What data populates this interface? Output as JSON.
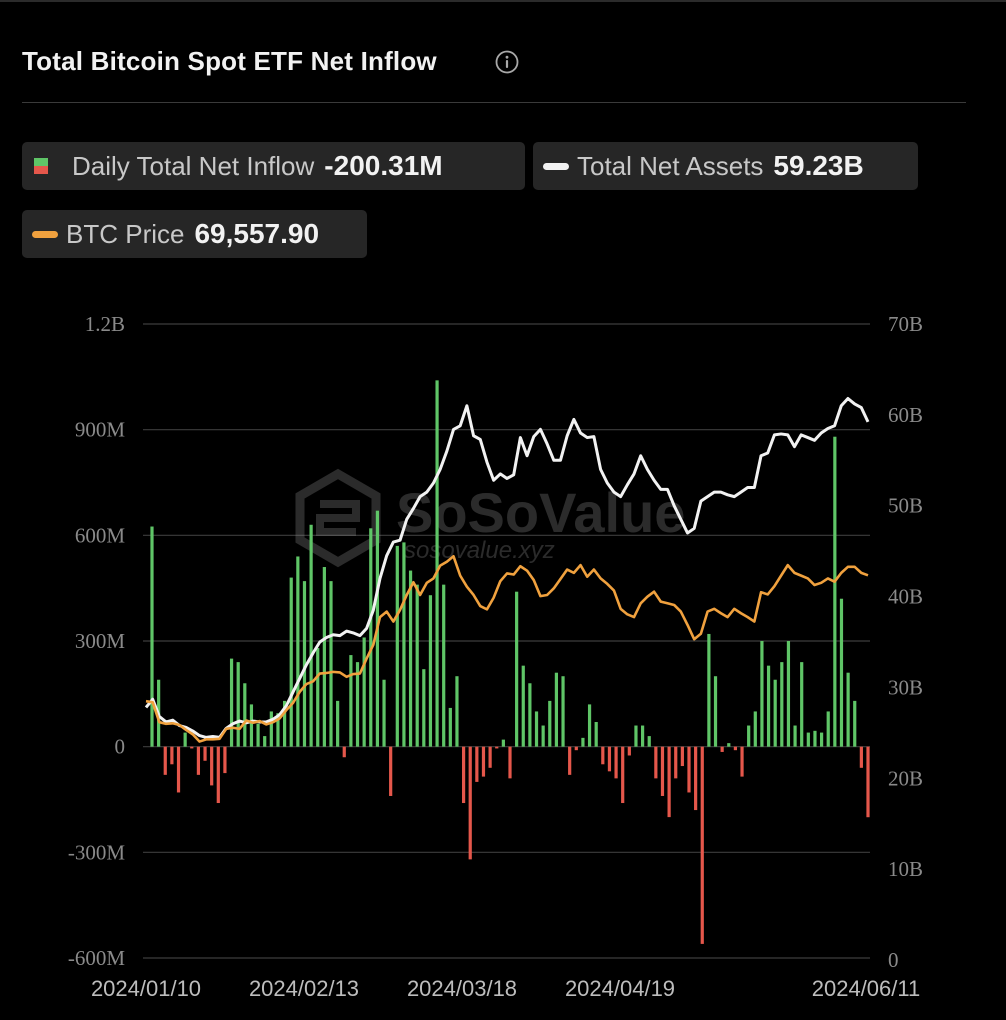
{
  "header": {
    "title": "Total Bitcoin Spot ETF Net Inflow",
    "info_icon": "info-icon"
  },
  "legend": [
    {
      "label": "Daily Total Net Inflow",
      "value": "-200.31M",
      "swatch": "bar"
    },
    {
      "label": "Total Net Assets",
      "value": "59.23B",
      "swatch": "line",
      "color": "#f2f2f2"
    },
    {
      "label": "BTC Price",
      "value": "69,557.90",
      "swatch": "line",
      "color": "#f0a13e"
    }
  ],
  "watermark": {
    "brand": "SoSoValue",
    "url": "sosovalue.xyz"
  },
  "colors": {
    "inflow_positive": "#5fc567",
    "inflow_negative": "#e5574b",
    "net_assets": "#f2f2f2",
    "btc_price": "#f0a13e",
    "background": "#000000"
  },
  "chart_data": {
    "type": "bar",
    "title": "Total Bitcoin Spot ETF Net Inflow",
    "x_ticks": [
      "2024/01/10",
      "2024/02/13",
      "2024/03/18",
      "2024/04/19",
      "2024/06/11"
    ],
    "x_range": [
      "2024/01/11",
      "2024/06/11"
    ],
    "left_axis": {
      "ticks": [
        "1.2B",
        "900M",
        "600M",
        "300M",
        "0",
        "-300M",
        "-600M"
      ],
      "ylim": [
        -600,
        1200
      ],
      "unit": "M"
    },
    "right_axis": {
      "ticks": [
        "70B",
        "60B",
        "50B",
        "40B",
        "30B",
        "20B",
        "10B",
        "0"
      ],
      "ylim": [
        0,
        70
      ],
      "unit": "B"
    },
    "grid": true,
    "series": [
      {
        "name": "Daily Total Net Inflow",
        "type": "bar",
        "axis": "left",
        "unit": "M",
        "values": [
          625,
          190,
          -80,
          -50,
          -130,
          40,
          -5,
          -80,
          -40,
          -110,
          -160,
          -75,
          250,
          240,
          180,
          120,
          65,
          30,
          100,
          95,
          130,
          480,
          540,
          470,
          630,
          280,
          510,
          470,
          130,
          -30,
          260,
          240,
          310,
          620,
          670,
          190,
          -140,
          570,
          580,
          500,
          460,
          220,
          430,
          1040,
          460,
          110,
          200,
          -160,
          -320,
          -100,
          -85,
          -60,
          -5,
          20,
          -90,
          440,
          230,
          180,
          100,
          60,
          130,
          210,
          200,
          -80,
          -10,
          25,
          120,
          70,
          -50,
          -70,
          -90,
          -160,
          -25,
          60,
          60,
          30,
          -90,
          -140,
          -200,
          -90,
          -55,
          -130,
          -180,
          -560,
          320,
          200,
          -15,
          10,
          -10,
          -85,
          60,
          100,
          300,
          230,
          190,
          240,
          300,
          60,
          240,
          40,
          45,
          40,
          100,
          880,
          420,
          210,
          130,
          -60,
          -200.31
        ]
      },
      {
        "name": "Total Net Assets",
        "type": "line",
        "axis": "right",
        "unit": "B",
        "values": [
          27.8,
          28.7,
          26.8,
          26.2,
          26.4,
          25.8,
          25.6,
          25.2,
          24.7,
          24.5,
          24.6,
          24.5,
          25.5,
          26.0,
          26.3,
          26.1,
          26.3,
          26.2,
          26.2,
          26.5,
          27.0,
          28.0,
          29.5,
          31.0,
          32.5,
          33.8,
          35.0,
          35.5,
          35.8,
          35.7,
          36.2,
          36.0,
          35.7,
          36.5,
          38.5,
          42.0,
          44.5,
          46.0,
          46.2,
          48.5,
          49.7,
          51.0,
          51.5,
          52.5,
          54.0,
          56.0,
          58.4,
          58.8,
          61.0,
          57.7,
          57.3,
          54.8,
          52.8,
          53.5,
          53.0,
          53.4,
          57.5,
          55.5,
          57.6,
          58.4,
          56.8,
          55.0,
          55.0,
          57.7,
          59.5,
          58.0,
          57.5,
          57.6,
          54.0,
          52.5,
          51.5,
          51.0,
          52.3,
          53.5,
          55.5,
          54.0,
          52.8,
          51.8,
          51.8,
          50.0,
          48.5,
          47.0,
          47.5,
          50.5,
          51.0,
          51.5,
          51.5,
          51.2,
          51.0,
          51.5,
          52.0,
          52.0,
          55.5,
          55.8,
          57.8,
          57.9,
          57.8,
          56.5,
          57.8,
          57.5,
          57.2,
          58.0,
          58.5,
          58.8,
          61.0,
          61.8,
          61.2,
          60.8,
          59.23
        ]
      },
      {
        "name": "BTC Price",
        "type": "line",
        "axis": "right",
        "unit": "USD",
        "values": [
          46800,
          46600,
          43000,
          42700,
          42800,
          42500,
          41600,
          40800,
          39500,
          39900,
          39900,
          40000,
          41800,
          42000,
          41800,
          43300,
          42900,
          43200,
          42600,
          43000,
          43700,
          45200,
          46500,
          48500,
          49900,
          50400,
          51800,
          51900,
          52100,
          52000,
          51200,
          51700,
          51800,
          54500,
          57000,
          62000,
          63000,
          61200,
          63300,
          66000,
          68300,
          66000,
          68200,
          69000,
          71300,
          72000,
          73000,
          69500,
          67500,
          66000,
          64000,
          63400,
          65500,
          68500,
          69900,
          69700,
          71200,
          70400,
          68700,
          65800,
          66000,
          67200,
          68900,
          70600,
          70000,
          71400,
          69300,
          70600,
          69000,
          68000,
          66800,
          63500,
          62500,
          62000,
          64500,
          65700,
          66600,
          64800,
          64500,
          64200,
          63000,
          60600,
          58000,
          59000,
          63000,
          63500,
          62700,
          62000,
          63500,
          62700,
          62000,
          61200,
          66500,
          66100,
          67600,
          69500,
          71400,
          70000,
          69500,
          69000,
          67800,
          68200,
          69000,
          68400,
          70000,
          71100,
          71100,
          70000,
          69557.9
        ]
      }
    ]
  }
}
